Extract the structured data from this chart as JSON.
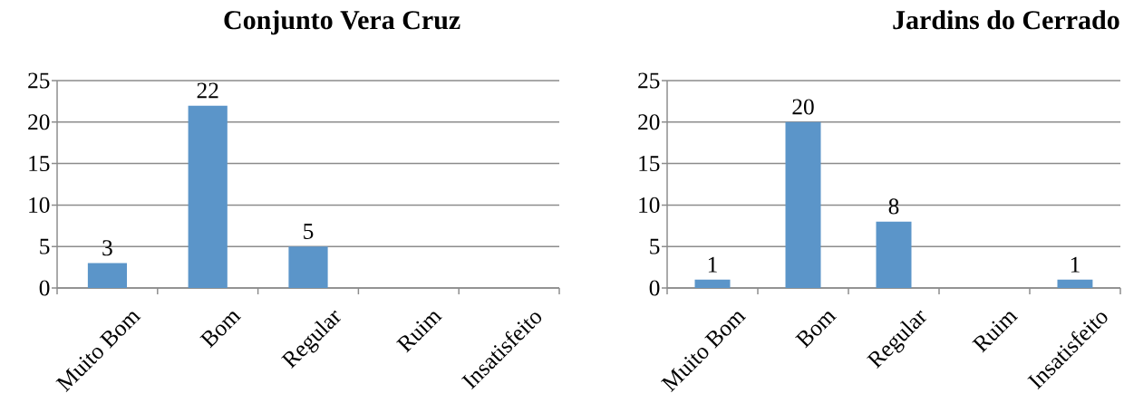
{
  "chart_data": [
    {
      "type": "bar",
      "title": "Conjunto Vera Cruz",
      "categories": [
        "Muito Bom",
        "Bom",
        "Regular",
        "Ruim",
        "Insatisfeito"
      ],
      "values": [
        3,
        22,
        5,
        0,
        0
      ],
      "value_labels": [
        "3",
        "22",
        "5",
        null,
        null
      ],
      "color": "#5b95c9",
      "ylim": [
        0,
        25
      ],
      "yticks": [
        0,
        5,
        10,
        15,
        20,
        25
      ],
      "grid": "y"
    },
    {
      "type": "bar",
      "title": "Jardins do Cerrado",
      "categories": [
        "Muito Bom",
        "Bom",
        "Regular",
        "Ruim",
        "Insatisfeito"
      ],
      "values": [
        1,
        20,
        8,
        0,
        1
      ],
      "value_labels": [
        "1",
        "20",
        "8",
        null,
        "1"
      ],
      "color": "#5b95c9",
      "ylim": [
        0,
        25
      ],
      "yticks": [
        0,
        5,
        10,
        15,
        20,
        25
      ],
      "grid": "y"
    }
  ]
}
